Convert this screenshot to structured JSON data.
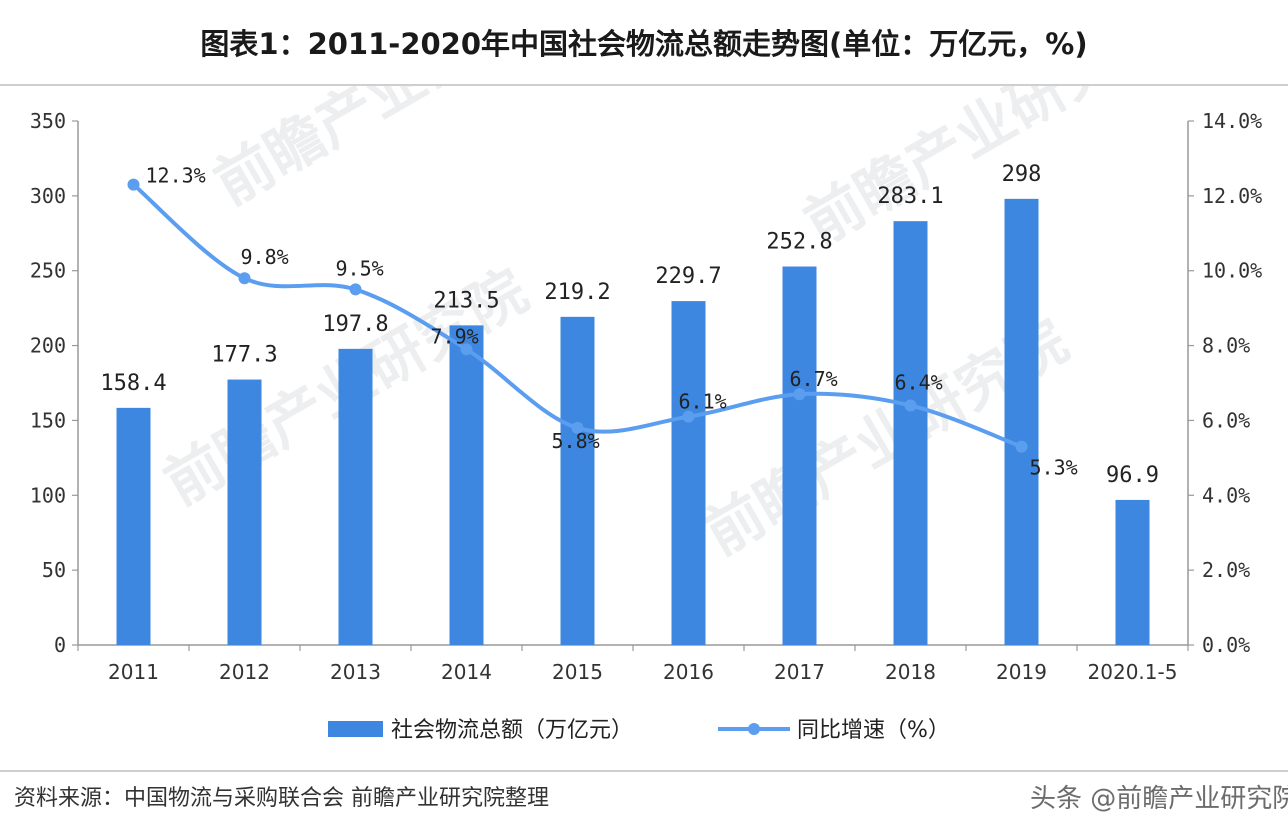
{
  "page": {
    "title": "图表1：2011-2020年中国社会物流总额走势图(单位：万亿元，%)",
    "source": "资料来源：中国物流与采购联合会 前瞻产业研究院整理",
    "watermark_brand": "头条 @前瞻产业研究院",
    "watermark_text": "前瞻产业研究院"
  },
  "chart_data": {
    "type": "bar",
    "categories": [
      "2011",
      "2012",
      "2013",
      "2014",
      "2015",
      "2016",
      "2017",
      "2018",
      "2019",
      "2020.1-5"
    ],
    "series": [
      {
        "name": "社会物流总额（万亿元）",
        "type": "bar",
        "axis": "left",
        "values": [
          158.4,
          177.3,
          197.8,
          213.5,
          219.2,
          229.7,
          252.8,
          283.1,
          298,
          96.9
        ],
        "labels": [
          "158.4",
          "177.3",
          "197.8",
          "213.5",
          "219.2",
          "229.7",
          "252.8",
          "283.1",
          "298",
          "96.9"
        ],
        "color": "#3d87e0"
      },
      {
        "name": "同比增速（%）",
        "type": "line",
        "axis": "right",
        "values": [
          12.3,
          9.8,
          9.5,
          7.9,
          5.8,
          6.1,
          6.7,
          6.4,
          5.3,
          null
        ],
        "labels": [
          "12.3%",
          "9.8%",
          "9.5%",
          "7.9%",
          "5.8%",
          "6.1%",
          "6.7%",
          "6.4%",
          "5.3%",
          ""
        ],
        "color": "#5b9ef0"
      }
    ],
    "y_left": {
      "ylim": [
        0,
        350
      ],
      "ticks": [
        "0",
        "50",
        "100",
        "150",
        "200",
        "250",
        "300",
        "350"
      ]
    },
    "y_right": {
      "ylim": [
        0,
        14
      ],
      "ticks": [
        "0.0%",
        "2.0%",
        "4.0%",
        "6.0%",
        "8.0%",
        "10.0%",
        "12.0%",
        "14.0%"
      ]
    },
    "grid": false,
    "legend": {
      "position": "bottom",
      "items": [
        "社会物流总额（万亿元）",
        "同比增速（%）"
      ]
    }
  }
}
